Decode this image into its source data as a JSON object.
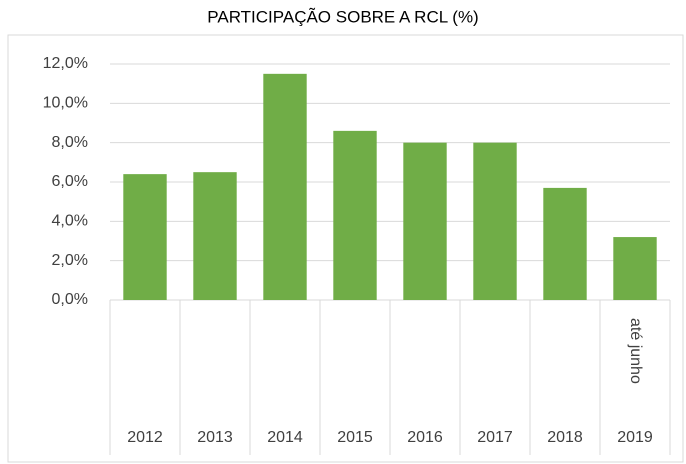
{
  "chart_data": {
    "type": "bar",
    "title": "PARTICIPAÇÃO SOBRE A RCL (%)",
    "categories": [
      "2012",
      "2013",
      "2014",
      "2015",
      "2016",
      "2017",
      "2018",
      "2019"
    ],
    "subcategories": [
      null,
      null,
      null,
      null,
      null,
      null,
      null,
      "até junho"
    ],
    "values": [
      6.4,
      6.5,
      11.5,
      8.6,
      8.0,
      8.0,
      5.7,
      3.2
    ],
    "color": "#70ad47",
    "ylim": [
      0,
      12
    ],
    "yticks": [
      {
        "value": 0,
        "label": "0,0%"
      },
      {
        "value": 2,
        "label": "2,0%"
      },
      {
        "value": 4,
        "label": "4,0%"
      },
      {
        "value": 6,
        "label": "6,0%"
      },
      {
        "value": 8,
        "label": "8,0%"
      },
      {
        "value": 10,
        "label": "10,0%"
      },
      {
        "value": 12,
        "label": "12,0%"
      }
    ],
    "grid": true
  }
}
